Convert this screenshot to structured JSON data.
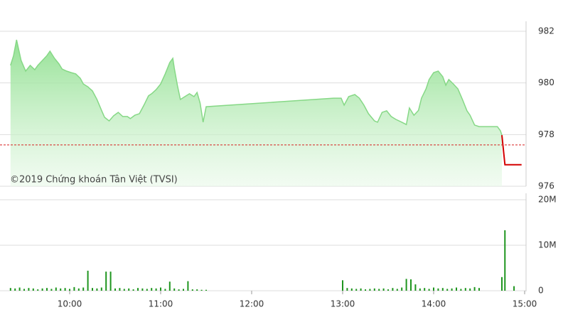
{
  "chart_data": [
    {
      "type": "area",
      "annotation": "©2019 Chứng khoán Tân Việt (TVSI)",
      "xlim": [
        555,
        900
      ],
      "ylim": [
        976,
        982
      ],
      "yticks": [
        976,
        978,
        980,
        982
      ],
      "grid": true,
      "reference_line": 977.6,
      "reference_color": "#d62020",
      "series": [
        {
          "color": "#86d886",
          "x": [
            561,
            563,
            565,
            568,
            571,
            574,
            577,
            579,
            582,
            585,
            587,
            590,
            593,
            595,
            598,
            601,
            604,
            607,
            609,
            612,
            615,
            618,
            621,
            623,
            626,
            629,
            632,
            635,
            638,
            640,
            643,
            646,
            649,
            652,
            654,
            657,
            660,
            663,
            666,
            668,
            669,
            671,
            673,
            676,
            679,
            682,
            684,
            686,
            688,
            690,
            774,
            779,
            781,
            784,
            788,
            791,
            794,
            797,
            801,
            803,
            806,
            809,
            812,
            815,
            819,
            822,
            824,
            827,
            830,
            832,
            835,
            837,
            840,
            843,
            846,
            848,
            850,
            853,
            856,
            859,
            862,
            864,
            867,
            870,
            882,
            884,
            885
          ],
          "values": [
            980.68,
            981.06,
            981.67,
            980.87,
            980.46,
            980.68,
            980.51,
            980.68,
            980.87,
            981.06,
            981.23,
            980.95,
            980.73,
            980.54,
            980.46,
            980.4,
            980.35,
            980.18,
            979.96,
            979.85,
            979.69,
            979.36,
            978.94,
            978.67,
            978.53,
            978.73,
            978.86,
            978.7,
            978.7,
            978.62,
            978.75,
            978.81,
            979.14,
            979.5,
            979.58,
            979.74,
            979.96,
            980.35,
            980.79,
            980.95,
            980.57,
            979.91,
            979.36,
            979.47,
            979.58,
            979.47,
            979.63,
            979.22,
            978.48,
            979.08,
            979.41,
            979.41,
            979.14,
            979.47,
            979.55,
            979.41,
            979.14,
            978.81,
            978.53,
            978.48,
            978.86,
            978.92,
            978.7,
            978.59,
            978.48,
            978.39,
            979.03,
            978.75,
            978.94,
            979.41,
            979.77,
            980.13,
            980.4,
            980.46,
            980.24,
            979.91,
            980.13,
            979.96,
            979.77,
            979.36,
            978.92,
            978.75,
            978.37,
            978.31,
            978.31,
            978.15,
            977.98
          ]
        },
        {
          "color": "#d40000",
          "x": [
            885,
            887,
            898
          ],
          "values": [
            977.98,
            976.83,
            976.83
          ]
        }
      ]
    },
    {
      "type": "bar",
      "xlim": [
        555,
        900
      ],
      "xticks": [
        {
          "value": 600,
          "label": "10:00"
        },
        {
          "value": 660,
          "label": "11:00"
        },
        {
          "value": 720,
          "label": "12:00"
        },
        {
          "value": 780,
          "label": "13:00"
        },
        {
          "value": 840,
          "label": "14:00"
        },
        {
          "value": 900,
          "label": "15:00"
        }
      ],
      "ylim": [
        0,
        20000000
      ],
      "yticks": [
        {
          "value": 0,
          "label": "0"
        },
        {
          "value": 10000000,
          "label": "10M"
        },
        {
          "value": 20000000,
          "label": "20M"
        }
      ],
      "grid": true,
      "color": "#1f951f",
      "x": [
        561,
        564,
        567,
        570,
        573,
        576,
        579,
        582,
        585,
        588,
        591,
        594,
        597,
        600,
        603,
        606,
        609,
        612,
        615,
        618,
        621,
        624,
        627,
        630,
        633,
        636,
        639,
        642,
        645,
        648,
        651,
        654,
        657,
        660,
        663,
        666,
        669,
        672,
        675,
        678,
        681,
        684,
        687,
        690,
        780,
        783,
        786,
        789,
        792,
        795,
        798,
        801,
        804,
        807,
        810,
        813,
        816,
        819,
        822,
        825,
        828,
        831,
        834,
        837,
        840,
        843,
        846,
        849,
        852,
        855,
        858,
        861,
        864,
        867,
        870,
        885,
        887,
        893
      ],
      "values": [
        600000,
        500000,
        700000,
        400000,
        600000,
        500000,
        300000,
        500000,
        600000,
        400000,
        700000,
        500000,
        600000,
        400000,
        800000,
        500000,
        700000,
        4400000,
        600000,
        500000,
        700000,
        4200000,
        4200000,
        500000,
        600000,
        400000,
        500000,
        300000,
        600000,
        500000,
        400000,
        600000,
        500000,
        700000,
        400000,
        2000000,
        500000,
        300000,
        400000,
        2100000,
        300000,
        300000,
        200000,
        200000,
        2300000,
        600000,
        500000,
        400000,
        500000,
        300000,
        400000,
        500000,
        400000,
        500000,
        300000,
        600000,
        400000,
        700000,
        2600000,
        2500000,
        1400000,
        500000,
        600000,
        400000,
        700000,
        500000,
        600000,
        400000,
        500000,
        700000,
        400000,
        600000,
        500000,
        800000,
        600000,
        3000000,
        13300000,
        1000000
      ]
    }
  ]
}
